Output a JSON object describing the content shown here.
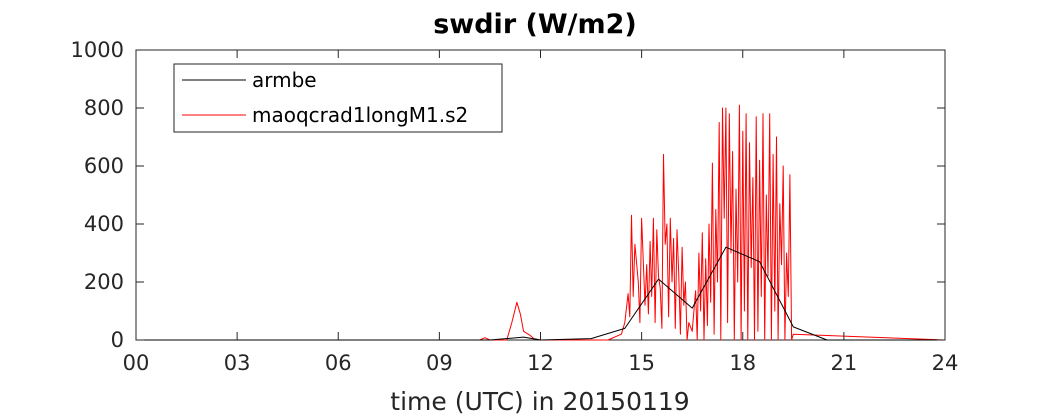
{
  "chart_data": {
    "type": "line",
    "title": "swdir  (W/m2)",
    "xlabel": "time (UTC) in 20150119",
    "ylabel": "",
    "xlim": [
      0,
      24
    ],
    "ylim": [
      0,
      1000
    ],
    "xticks": [
      0,
      3,
      6,
      9,
      12,
      15,
      18,
      21,
      24
    ],
    "xtick_labels": [
      "00",
      "03",
      "06",
      "09",
      "12",
      "15",
      "18",
      "21",
      "24"
    ],
    "yticks": [
      0,
      200,
      400,
      600,
      800,
      1000
    ],
    "ytick_labels": [
      "0",
      "200",
      "400",
      "600",
      "800",
      "1000"
    ],
    "grid": false,
    "legend_position": "top-left",
    "series": [
      {
        "name": "armbe",
        "color": "#000000",
        "x": [
          0,
          10.5,
          11.5,
          12.0,
          13.5,
          14.5,
          15.5,
          16.5,
          17.5,
          18.5,
          19.5,
          20.5,
          24
        ],
        "y": [
          0,
          0,
          10,
          0,
          5,
          40,
          210,
          110,
          320,
          270,
          45,
          0,
          0
        ]
      },
      {
        "name": "maoqcrad1longM1.s2",
        "color": "#ff0000",
        "x": [
          0,
          10.2,
          10.35,
          10.5,
          11.0,
          11.15,
          11.3,
          11.4,
          11.5,
          11.7,
          11.8,
          12.0,
          12.3,
          14.0,
          14.4,
          14.5,
          14.6,
          14.65,
          14.7,
          14.75,
          14.8,
          14.9,
          14.95,
          15.0,
          15.1,
          15.15,
          15.2,
          15.25,
          15.3,
          15.35,
          15.4,
          15.45,
          15.5,
          15.55,
          15.6,
          15.65,
          15.7,
          15.75,
          15.8,
          15.85,
          15.9,
          15.95,
          16.0,
          16.05,
          16.1,
          16.15,
          16.2,
          16.25,
          16.3,
          16.35,
          16.4,
          16.5,
          16.6,
          16.65,
          16.7,
          16.75,
          16.8,
          16.85,
          16.9,
          16.95,
          17.0,
          17.05,
          17.1,
          17.15,
          17.2,
          17.25,
          17.3,
          17.35,
          17.4,
          17.45,
          17.5,
          17.55,
          17.6,
          17.65,
          17.7,
          17.75,
          17.8,
          17.85,
          17.9,
          17.95,
          18.0,
          18.05,
          18.1,
          18.15,
          18.2,
          18.25,
          18.3,
          18.35,
          18.4,
          18.45,
          18.5,
          18.55,
          18.6,
          18.65,
          18.7,
          18.75,
          18.8,
          18.85,
          18.9,
          18.95,
          19.0,
          19.05,
          19.1,
          19.15,
          19.2,
          19.25,
          19.3,
          19.35,
          19.4,
          19.45,
          19.5,
          24
        ],
        "y": [
          0,
          0,
          8,
          0,
          0,
          60,
          130,
          90,
          30,
          15,
          5,
          0,
          0,
          0,
          20,
          60,
          160,
          80,
          430,
          150,
          330,
          200,
          60,
          420,
          120,
          260,
          90,
          340,
          150,
          420,
          60,
          380,
          220,
          180,
          40,
          640,
          330,
          400,
          80,
          420,
          200,
          350,
          40,
          380,
          230,
          20,
          320,
          120,
          200,
          0,
          60,
          30,
          170,
          0,
          300,
          100,
          370,
          0,
          280,
          50,
          400,
          130,
          610,
          20,
          450,
          200,
          750,
          0,
          800,
          420,
          800,
          60,
          780,
          300,
          650,
          0,
          520,
          200,
          810,
          0,
          720,
          100,
          780,
          0,
          680,
          250,
          560,
          0,
          770,
          30,
          620,
          150,
          780,
          0,
          500,
          220,
          780,
          0,
          640,
          100,
          700,
          0,
          470,
          260,
          600,
          0,
          300,
          150,
          570,
          0,
          20,
          0
        ]
      }
    ]
  }
}
